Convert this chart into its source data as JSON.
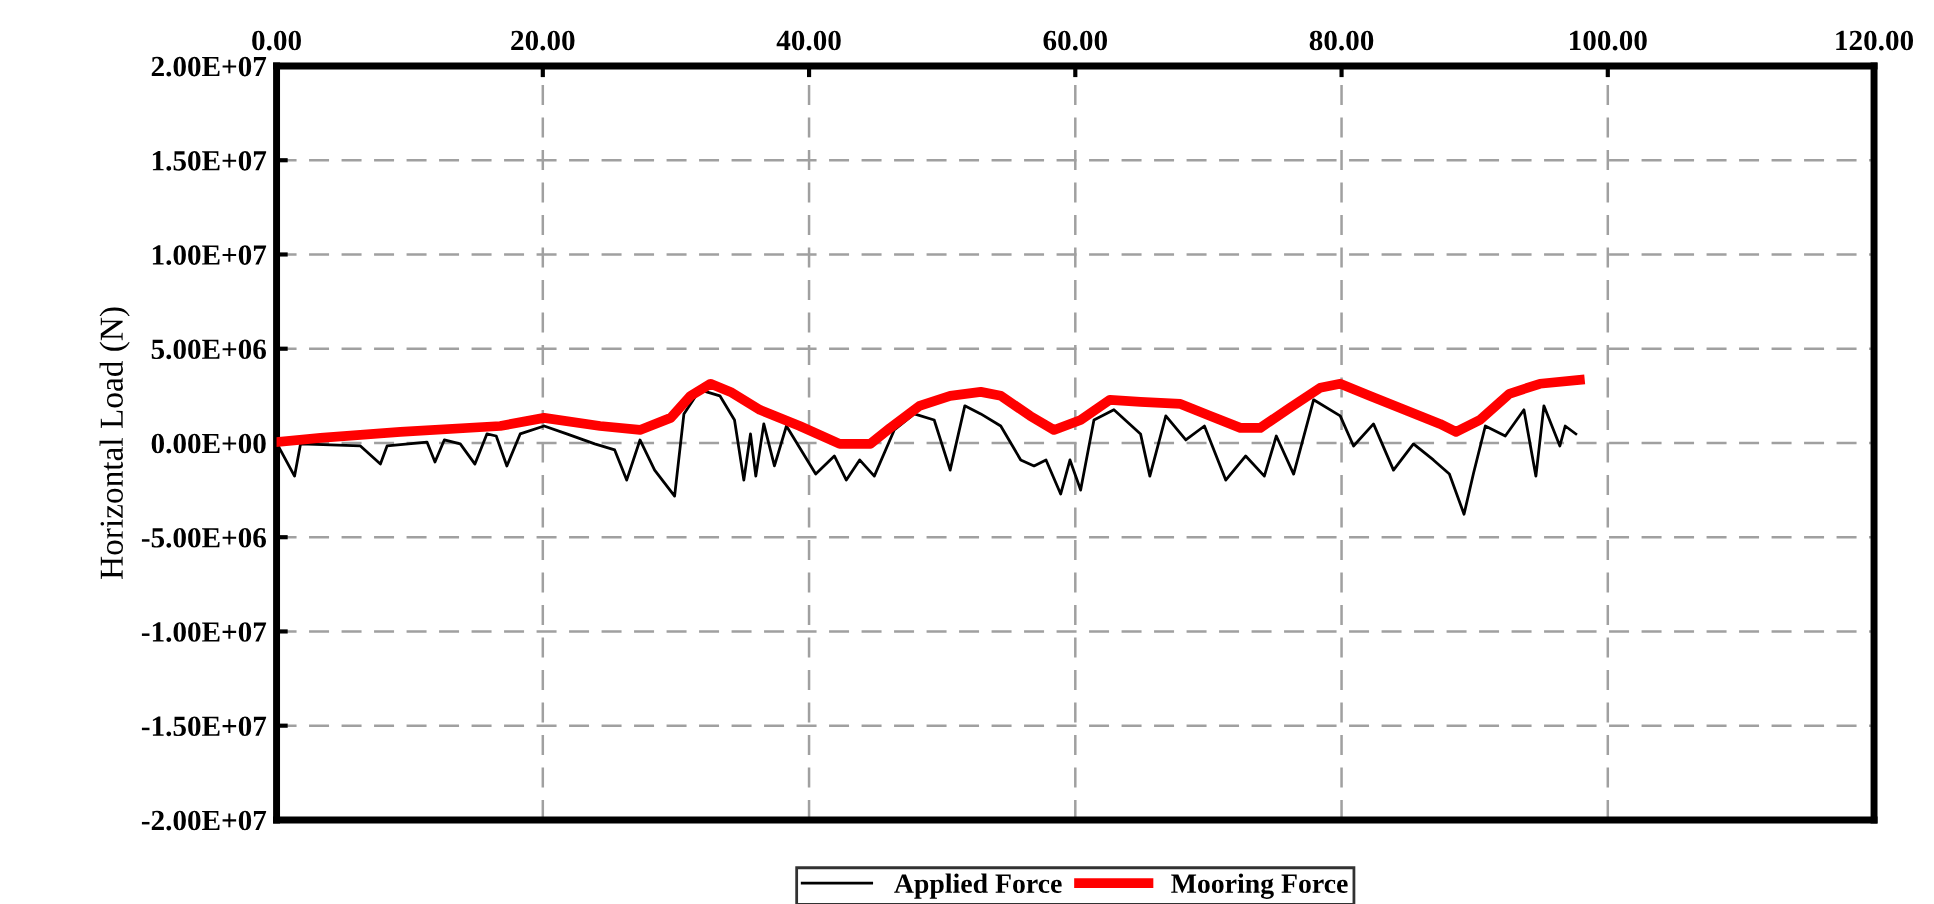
{
  "chart_data": {
    "type": "line",
    "ylabel": "Horizontal Load (N)",
    "xlim": [
      0,
      120
    ],
    "xticks": [
      {
        "value": 0,
        "label": "0.00"
      },
      {
        "value": 20,
        "label": "20.00"
      },
      {
        "value": 40,
        "label": "40.00"
      },
      {
        "value": 60,
        "label": "60.00"
      },
      {
        "value": 80,
        "label": "80.00"
      },
      {
        "value": 100,
        "label": "100.00"
      },
      {
        "value": 120,
        "label": "120.00"
      }
    ],
    "ylim": [
      -20000000,
      20000000
    ],
    "yticks": [
      {
        "value": -20000000,
        "label": "-2.00E+07"
      },
      {
        "value": -15000000,
        "label": "-1.50E+07"
      },
      {
        "value": -10000000,
        "label": "-1.00E+07"
      },
      {
        "value": -5000000,
        "label": "-5.00E+06"
      },
      {
        "value": 0,
        "label": "0.00E+00"
      },
      {
        "value": 5000000,
        "label": "5.00E+06"
      },
      {
        "value": 10000000,
        "label": "1.00E+07"
      },
      {
        "value": 15000000,
        "label": "1.50E+07"
      },
      {
        "value": 20000000,
        "label": "2.00E+07"
      }
    ],
    "grid": true,
    "legend": "bottom",
    "marker": "none",
    "line_style": "solid",
    "series": [
      {
        "name": "Applied Force",
        "color": "#000000",
        "x": [
          0,
          1.35,
          1.8,
          6.3,
          7.8,
          8.3,
          11.3,
          11.9,
          12.6,
          13.8,
          14.9,
          15.8,
          16.5,
          17.3,
          18.3,
          20.1,
          21.8,
          23.9,
          25.4,
          26.3,
          27.3,
          28.4,
          29.9,
          30.6,
          31.8,
          33.3,
          34.4,
          35.1,
          35.6,
          36.0,
          36.6,
          37.4,
          38.3,
          40.5,
          41.9,
          42.8,
          43.8,
          44.9,
          46.4,
          47.9,
          49.4,
          50.6,
          51.7,
          52.9,
          54.4,
          55.9,
          56.9,
          57.8,
          58.9,
          59.6,
          60.4,
          61.4,
          62.9,
          64.9,
          65.6,
          66.8,
          68.3,
          69.7,
          71.3,
          72.8,
          74.2,
          75.1,
          76.4,
          77.9,
          79.9,
          80.9,
          82.4,
          83.9,
          85.4,
          86.9,
          88.1,
          89.2,
          89.9,
          90.8,
          92.3,
          93.7,
          94.6,
          95.2,
          96.4,
          96.8,
          97.6
        ],
        "values": [
          0,
          -1760000,
          -50000,
          -160000,
          -1120000,
          -160000,
          50000,
          -1010000,
          160000,
          -50000,
          -1120000,
          480000,
          370000,
          -1220000,
          480000,
          900000,
          480000,
          -50000,
          -370000,
          -1970000,
          160000,
          -1440000,
          -2820000,
          1540000,
          2820000,
          2500000,
          1220000,
          -1970000,
          480000,
          -1760000,
          1010000,
          -1220000,
          900000,
          -1650000,
          -690000,
          -1970000,
          -900000,
          -1760000,
          690000,
          1540000,
          1220000,
          -1440000,
          1970000,
          1540000,
          900000,
          -900000,
          -1220000,
          -900000,
          -2710000,
          -900000,
          -2500000,
          1220000,
          1760000,
          480000,
          -1760000,
          1440000,
          160000,
          900000,
          -1970000,
          -690000,
          -1760000,
          370000,
          -1650000,
          2290000,
          1440000,
          -160000,
          1010000,
          -1440000,
          -50000,
          -900000,
          -1650000,
          -3780000,
          -1650000,
          900000,
          370000,
          1760000,
          -1760000,
          1970000,
          -160000,
          900000,
          480000
        ]
      },
      {
        "name": "Mooring Force",
        "color": "#ff0000",
        "x": [
          0,
          3.3,
          9.3,
          16.8,
          20.1,
          24.3,
          27.3,
          29.6,
          31.1,
          32.6,
          34.1,
          36.3,
          39.3,
          42.3,
          44.6,
          46.1,
          48.3,
          50.6,
          52.9,
          54.4,
          56.6,
          58.4,
          60.4,
          62.6,
          64.9,
          67.9,
          70.1,
          72.4,
          73.9,
          76.1,
          78.4,
          79.9,
          82.1,
          84.4,
          87.4,
          88.6,
          90.4,
          92.6,
          94.9,
          97.9
        ],
        "values": [
          50000,
          270000,
          590000,
          900000,
          1330000,
          900000,
          690000,
          1330000,
          2500000,
          3140000,
          2710000,
          1760000,
          900000,
          -50000,
          -50000,
          800000,
          1970000,
          2500000,
          2710000,
          2500000,
          1440000,
          690000,
          1220000,
          2290000,
          2180000,
          2070000,
          1440000,
          800000,
          800000,
          1860000,
          2930000,
          3140000,
          2500000,
          1860000,
          1010000,
          590000,
          1220000,
          2610000,
          3140000,
          3350000
        ]
      }
    ]
  }
}
